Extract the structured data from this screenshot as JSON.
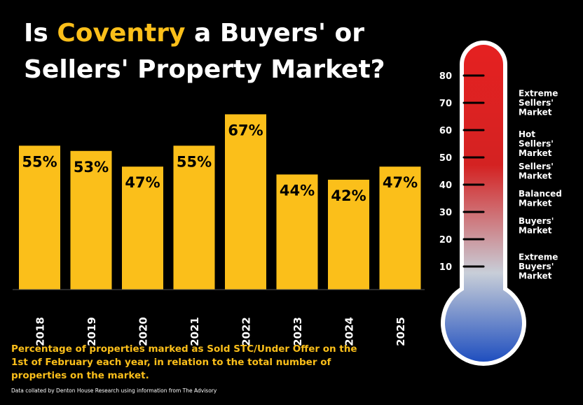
{
  "title": {
    "prefix": "Is ",
    "highlight": "Coventry",
    "line1_suffix": " a Buyers' or",
    "line2": "Sellers' Property Market?"
  },
  "caption": "Percentage of properties marked as Sold STC/Under Offer on the 1st of February each year, in relation to the total number of properties on the market.",
  "source": "Data collated by Denton House Research using information from The Advisory",
  "colors": {
    "bar": "#fbbf1a",
    "background": "#000000",
    "thermo_top": "#e52121",
    "thermo_mid": "#c8ced8",
    "thermo_bottom": "#1f4fbf"
  },
  "chart_data": [
    {
      "type": "bar",
      "categories": [
        "2018",
        "2019",
        "2020",
        "2021",
        "2022",
        "2023",
        "2024",
        "2025"
      ],
      "values": [
        55,
        53,
        47,
        55,
        67,
        44,
        42,
        47
      ],
      "data_labels": [
        "55%",
        "53%",
        "47%",
        "55%",
        "67%",
        "44%",
        "42%",
        "47%"
      ],
      "unit": "%",
      "ylim": [
        0,
        100
      ],
      "grid": false,
      "legend": "none"
    },
    {
      "type": "gauge",
      "ticks": [
        10,
        20,
        30,
        40,
        50,
        60,
        70,
        80
      ],
      "range": [
        0,
        90
      ],
      "zones": [
        {
          "label": [
            "Extreme",
            "Sellers'",
            "Market"
          ],
          "value": 70
        },
        {
          "label": [
            "Hot",
            "Sellers'",
            "Market"
          ],
          "value": 55
        },
        {
          "label": [
            "Sellers'",
            "Market"
          ],
          "value": 45
        },
        {
          "label": [
            "Balanced",
            "Market"
          ],
          "value": 35
        },
        {
          "label": [
            "Buyers'",
            "Market"
          ],
          "value": 25
        },
        {
          "label": [
            "Extreme",
            "Buyers'",
            "Market"
          ],
          "value": 10
        }
      ]
    }
  ]
}
